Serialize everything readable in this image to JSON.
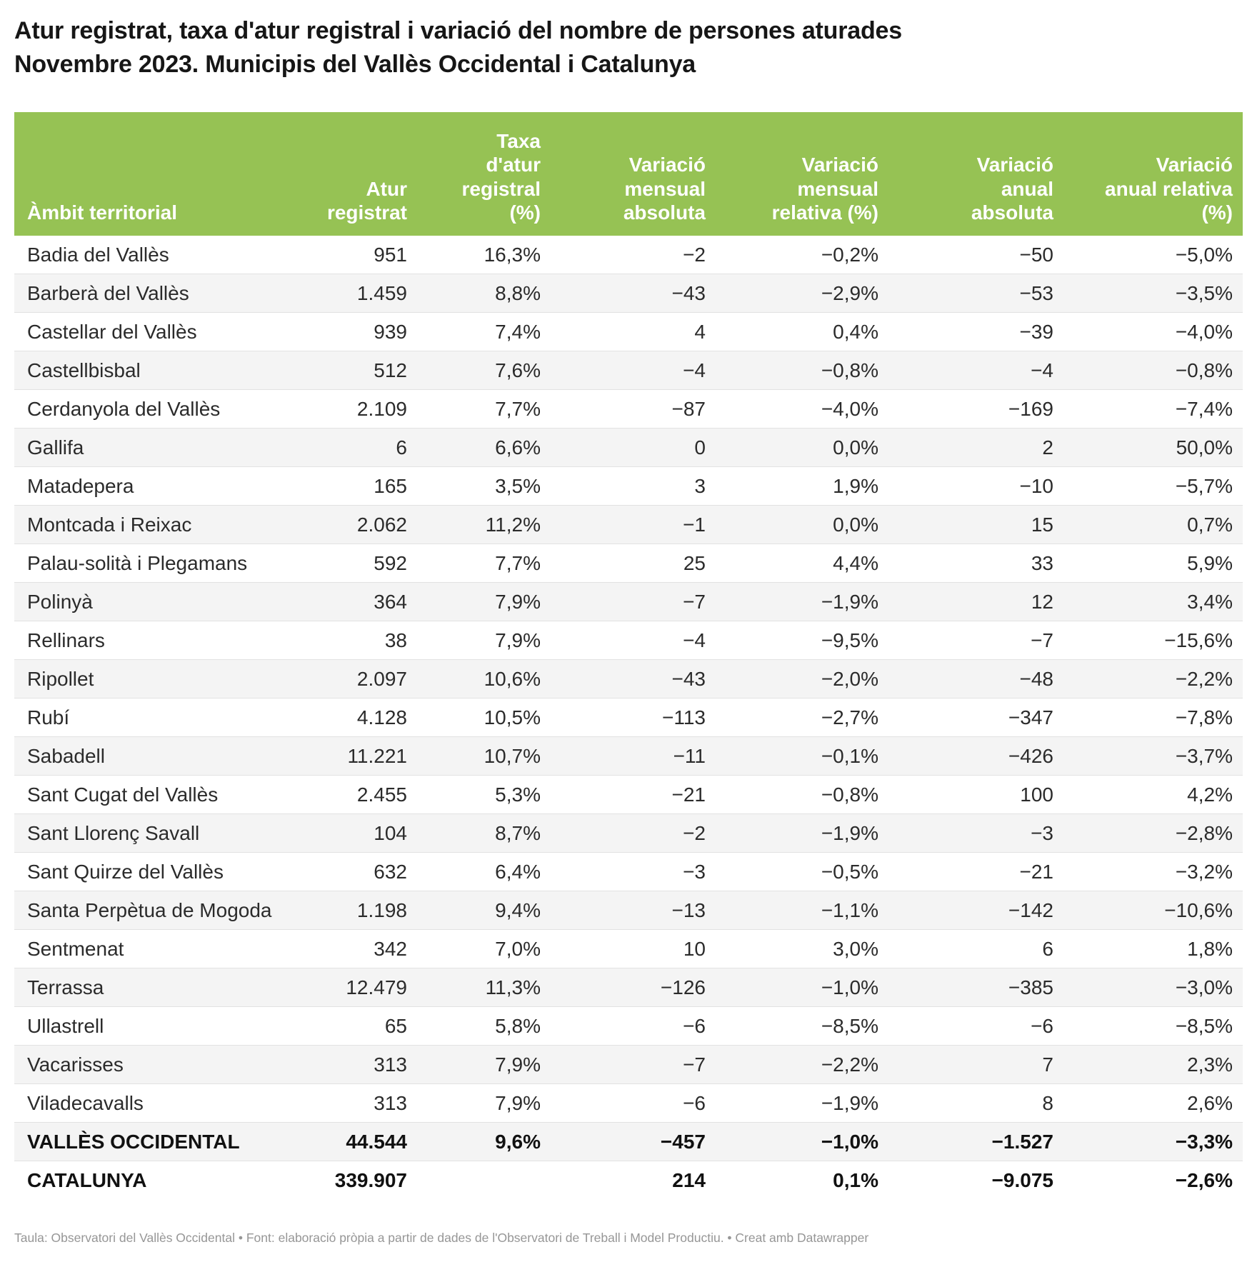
{
  "title": "Atur registrat, taxa d'atur registral i variació del nombre de persones aturades\nNovembre 2023. Municipis del Vallès Occidental i Catalunya",
  "colors": {
    "header_bg": "#96c254",
    "header_text": "#ffffff",
    "row_stripe": "#f4f4f4",
    "row_border": "#e2e2e2",
    "body_text": "#2b2b2b",
    "footer_text": "#969696"
  },
  "table": {
    "columns": [
      {
        "label": "Àmbit territorial",
        "align": "left"
      },
      {
        "label": "Atur\nregistrat",
        "align": "right"
      },
      {
        "label": "Taxa\nd'atur\nregistral\n(%)",
        "align": "right"
      },
      {
        "label": "Variació\nmensual\nabsoluta",
        "align": "right"
      },
      {
        "label": "Variació\nmensual\nrelativa (%)",
        "align": "right"
      },
      {
        "label": "Variació\nanual\nabsoluta",
        "align": "right"
      },
      {
        "label": "Variació\nanual relativa\n(%)",
        "align": "right"
      }
    ],
    "rows": [
      {
        "bold": false,
        "cells": [
          "Badia del Vallès",
          "951",
          "16,3%",
          "−2",
          "−0,2%",
          "−50",
          "−5,0%"
        ]
      },
      {
        "bold": false,
        "cells": [
          "Barberà del Vallès",
          "1.459",
          "8,8%",
          "−43",
          "−2,9%",
          "−53",
          "−3,5%"
        ]
      },
      {
        "bold": false,
        "cells": [
          "Castellar del Vallès",
          "939",
          "7,4%",
          "4",
          "0,4%",
          "−39",
          "−4,0%"
        ]
      },
      {
        "bold": false,
        "cells": [
          "Castellbisbal",
          "512",
          "7,6%",
          "−4",
          "−0,8%",
          "−4",
          "−0,8%"
        ]
      },
      {
        "bold": false,
        "cells": [
          "Cerdanyola del Vallès",
          "2.109",
          "7,7%",
          "−87",
          "−4,0%",
          "−169",
          "−7,4%"
        ]
      },
      {
        "bold": false,
        "cells": [
          "Gallifa",
          "6",
          "6,6%",
          "0",
          "0,0%",
          "2",
          "50,0%"
        ]
      },
      {
        "bold": false,
        "cells": [
          "Matadepera",
          "165",
          "3,5%",
          "3",
          "1,9%",
          "−10",
          "−5,7%"
        ]
      },
      {
        "bold": false,
        "cells": [
          "Montcada i Reixac",
          "2.062",
          "11,2%",
          "−1",
          "0,0%",
          "15",
          "0,7%"
        ]
      },
      {
        "bold": false,
        "cells": [
          "Palau-solità i Plegamans",
          "592",
          "7,7%",
          "25",
          "4,4%",
          "33",
          "5,9%"
        ]
      },
      {
        "bold": false,
        "cells": [
          "Polinyà",
          "364",
          "7,9%",
          "−7",
          "−1,9%",
          "12",
          "3,4%"
        ]
      },
      {
        "bold": false,
        "cells": [
          "Rellinars",
          "38",
          "7,9%",
          "−4",
          "−9,5%",
          "−7",
          "−15,6%"
        ]
      },
      {
        "bold": false,
        "cells": [
          "Ripollet",
          "2.097",
          "10,6%",
          "−43",
          "−2,0%",
          "−48",
          "−2,2%"
        ]
      },
      {
        "bold": false,
        "cells": [
          "Rubí",
          "4.128",
          "10,5%",
          "−113",
          "−2,7%",
          "−347",
          "−7,8%"
        ]
      },
      {
        "bold": false,
        "cells": [
          "Sabadell",
          "11.221",
          "10,7%",
          "−11",
          "−0,1%",
          "−426",
          "−3,7%"
        ]
      },
      {
        "bold": false,
        "cells": [
          "Sant Cugat del Vallès",
          "2.455",
          "5,3%",
          "−21",
          "−0,8%",
          "100",
          "4,2%"
        ]
      },
      {
        "bold": false,
        "cells": [
          "Sant Llorenç Savall",
          "104",
          "8,7%",
          "−2",
          "−1,9%",
          "−3",
          "−2,8%"
        ]
      },
      {
        "bold": false,
        "cells": [
          "Sant Quirze del Vallès",
          "632",
          "6,4%",
          "−3",
          "−0,5%",
          "−21",
          "−3,2%"
        ]
      },
      {
        "bold": false,
        "cells": [
          "Santa Perpètua de Mogoda",
          "1.198",
          "9,4%",
          "−13",
          "−1,1%",
          "−142",
          "−10,6%"
        ]
      },
      {
        "bold": false,
        "cells": [
          "Sentmenat",
          "342",
          "7,0%",
          "10",
          "3,0%",
          "6",
          "1,8%"
        ]
      },
      {
        "bold": false,
        "cells": [
          "Terrassa",
          "12.479",
          "11,3%",
          "−126",
          "−1,0%",
          "−385",
          "−3,0%"
        ]
      },
      {
        "bold": false,
        "cells": [
          "Ullastrell",
          "65",
          "5,8%",
          "−6",
          "−8,5%",
          "−6",
          "−8,5%"
        ]
      },
      {
        "bold": false,
        "cells": [
          "Vacarisses",
          "313",
          "7,9%",
          "−7",
          "−2,2%",
          "7",
          "2,3%"
        ]
      },
      {
        "bold": false,
        "cells": [
          "Viladecavalls",
          "313",
          "7,9%",
          "−6",
          "−1,9%",
          "8",
          "2,6%"
        ]
      },
      {
        "bold": true,
        "cells": [
          "VALLÈS OCCIDENTAL",
          "44.544",
          "9,6%",
          "−457",
          "−1,0%",
          "−1.527",
          "−3,3%"
        ]
      },
      {
        "bold": true,
        "cells": [
          "CATALUNYA",
          "339.907",
          "",
          "214",
          "0,1%",
          "−9.075",
          "−2,6%"
        ]
      }
    ]
  },
  "footer": {
    "text": "Taula: Observatori del Vallès Occidental • Font: elaboració pròpia a partir de dades de l'Observatori de Treball i Model Productiu.  • ",
    "credit_label": "Creat amb Datawrapper"
  },
  "chart_data": {
    "type": "table",
    "title": "Atur registrat, taxa d'atur registral i variació del nombre de persones aturades. Novembre 2023. Municipis del Vallès Occidental i Catalunya",
    "columns": [
      "Àmbit territorial",
      "Atur registrat",
      "Taxa d'atur registral (%)",
      "Variació mensual absoluta",
      "Variació mensual relativa (%)",
      "Variació anual absoluta",
      "Variació anual relativa (%)"
    ],
    "rows": [
      [
        "Badia del Vallès",
        951,
        16.3,
        -2,
        -0.2,
        -50,
        -5.0
      ],
      [
        "Barberà del Vallès",
        1459,
        8.8,
        -43,
        -2.9,
        -53,
        -3.5
      ],
      [
        "Castellar del Vallès",
        939,
        7.4,
        4,
        0.4,
        -39,
        -4.0
      ],
      [
        "Castellbisbal",
        512,
        7.6,
        -4,
        -0.8,
        -4,
        -0.8
      ],
      [
        "Cerdanyola del Vallès",
        2109,
        7.7,
        -87,
        -4.0,
        -169,
        -7.4
      ],
      [
        "Gallifa",
        6,
        6.6,
        0,
        0.0,
        2,
        50.0
      ],
      [
        "Matadepera",
        165,
        3.5,
        3,
        1.9,
        -10,
        -5.7
      ],
      [
        "Montcada i Reixac",
        2062,
        11.2,
        -1,
        0.0,
        15,
        0.7
      ],
      [
        "Palau-solità i Plegamans",
        592,
        7.7,
        25,
        4.4,
        33,
        5.9
      ],
      [
        "Polinyà",
        364,
        7.9,
        -7,
        -1.9,
        12,
        3.4
      ],
      [
        "Rellinars",
        38,
        7.9,
        -4,
        -9.5,
        -7,
        -15.6
      ],
      [
        "Ripollet",
        2097,
        10.6,
        -43,
        -2.0,
        -48,
        -2.2
      ],
      [
        "Rubí",
        4128,
        10.5,
        -113,
        -2.7,
        -347,
        -7.8
      ],
      [
        "Sabadell",
        11221,
        10.7,
        -11,
        -0.1,
        -426,
        -3.7
      ],
      [
        "Sant Cugat del Vallès",
        2455,
        5.3,
        -21,
        -0.8,
        100,
        4.2
      ],
      [
        "Sant Llorenç Savall",
        104,
        8.7,
        -2,
        -1.9,
        -3,
        -2.8
      ],
      [
        "Sant Quirze del Vallès",
        632,
        6.4,
        -3,
        -0.5,
        -21,
        -3.2
      ],
      [
        "Santa Perpètua de Mogoda",
        1198,
        9.4,
        -13,
        -1.1,
        -142,
        -10.6
      ],
      [
        "Sentmenat",
        342,
        7.0,
        10,
        3.0,
        6,
        1.8
      ],
      [
        "Terrassa",
        12479,
        11.3,
        -126,
        -1.0,
        -385,
        -3.0
      ],
      [
        "Ullastrell",
        65,
        5.8,
        -6,
        -8.5,
        -6,
        -8.5
      ],
      [
        "Vacarisses",
        313,
        7.9,
        -7,
        -2.2,
        7,
        2.3
      ],
      [
        "Viladecavalls",
        313,
        7.9,
        -6,
        -1.9,
        8,
        2.6
      ],
      [
        "VALLÈS OCCIDENTAL",
        44544,
        9.6,
        -457,
        -1.0,
        -1527,
        -3.3
      ],
      [
        "CATALUNYA",
        339907,
        null,
        214,
        0.1,
        -9075,
        -2.6
      ]
    ]
  }
}
